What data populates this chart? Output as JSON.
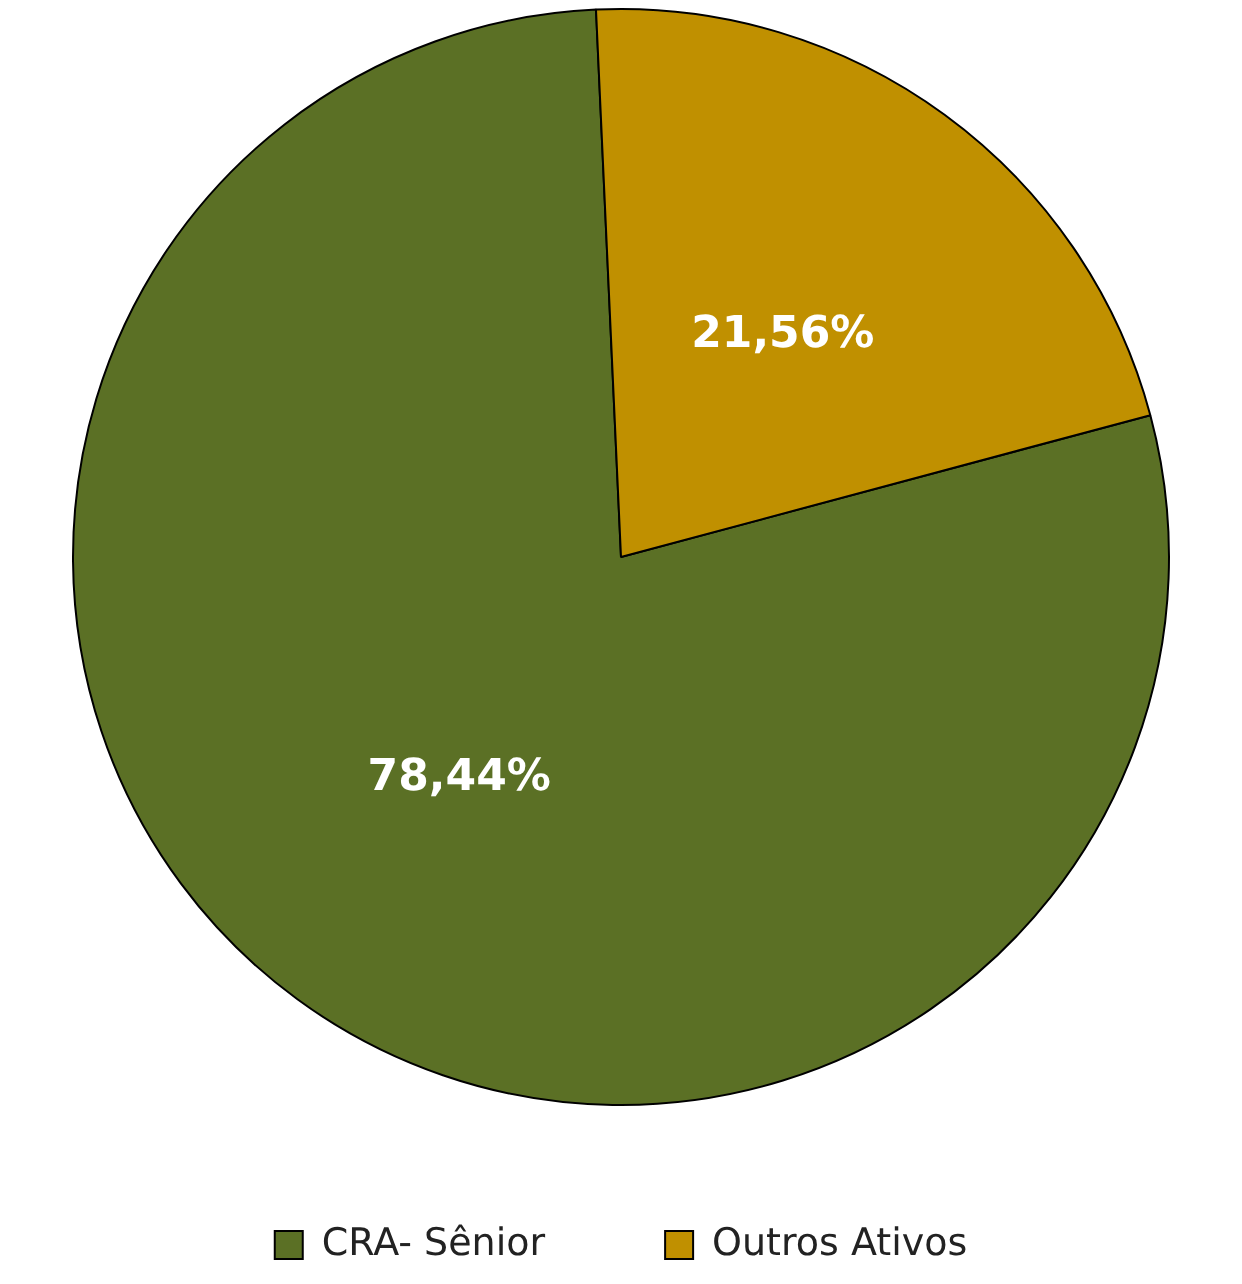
{
  "chart_data": {
    "type": "pie",
    "categories": [
      "CRA- Sênior",
      "Outros Ativos"
    ],
    "values": [
      78.44,
      21.56
    ],
    "colors": [
      "#5b7025",
      "#c09000"
    ],
    "value_labels": [
      "78,44%",
      "21,56%"
    ],
    "legend": "bottom"
  }
}
